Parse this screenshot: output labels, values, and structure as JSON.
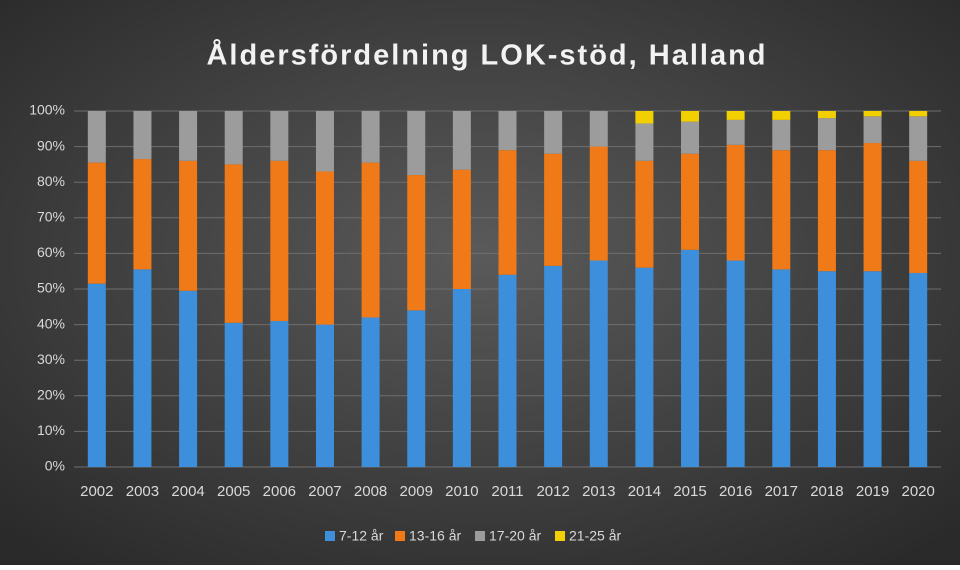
{
  "chart_data": {
    "type": "stacked_bar",
    "title": "Åldersfördelning LOK-stöd, Halland",
    "categories": [
      "2002",
      "2003",
      "2004",
      "2005",
      "2006",
      "2007",
      "2008",
      "2009",
      "2010",
      "2011",
      "2012",
      "2013",
      "2014",
      "2015",
      "2016",
      "2017",
      "2018",
      "2019",
      "2020"
    ],
    "series": [
      {
        "name": "7-12 år",
        "color": "#3d8fdc",
        "values": [
          51.5,
          55.5,
          49.5,
          40.5,
          41,
          40,
          42,
          44,
          50,
          54,
          56.5,
          58,
          56,
          61,
          58,
          55.5,
          55,
          55,
          54.5
        ]
      },
      {
        "name": "13-16 år",
        "color": "#f07a18",
        "values": [
          34,
          31,
          36.5,
          44.5,
          45,
          43,
          43.5,
          38,
          33.5,
          35,
          31.5,
          32,
          30,
          27,
          32.5,
          33.5,
          34,
          36,
          31.5
        ]
      },
      {
        "name": "17-20 år",
        "color": "#9c9c9c",
        "values": [
          14.5,
          13.5,
          14,
          15,
          14,
          17,
          14.5,
          18,
          16.5,
          11,
          12,
          10,
          10.5,
          9,
          7,
          8.5,
          9,
          7.5,
          12.5
        ]
      },
      {
        "name": "21-25 år",
        "color": "#f2cf00",
        "values": [
          0,
          0,
          0,
          0,
          0,
          0,
          0,
          0,
          0,
          0,
          0,
          0,
          3.5,
          3,
          2.5,
          2.5,
          2,
          1.5,
          1.5
        ]
      }
    ],
    "ylim": [
      0,
      100
    ],
    "yticks": [
      {
        "value": 0,
        "label": "0%"
      },
      {
        "value": 10,
        "label": "10%"
      },
      {
        "value": 20,
        "label": "20%"
      },
      {
        "value": 30,
        "label": "30%"
      },
      {
        "value": 40,
        "label": "40%"
      },
      {
        "value": 50,
        "label": "50%"
      },
      {
        "value": 60,
        "label": "60%"
      },
      {
        "value": 70,
        "label": "70%"
      },
      {
        "value": 80,
        "label": "80%"
      },
      {
        "value": 90,
        "label": "90%"
      },
      {
        "value": 100,
        "label": "100%"
      }
    ],
    "grid": true,
    "legend": "bottom"
  }
}
